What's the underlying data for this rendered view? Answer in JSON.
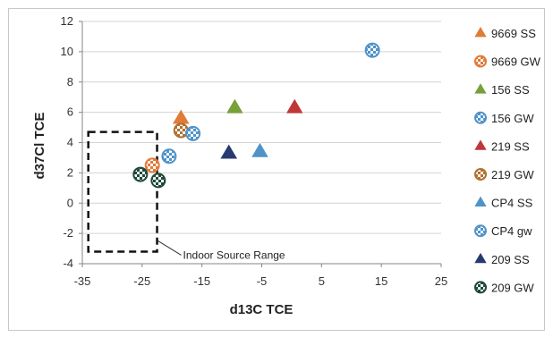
{
  "chart_data": {
    "type": "scatter",
    "xlabel": "d13C TCE",
    "ylabel": "d37Cl TCE",
    "xlim": [
      -35,
      25
    ],
    "ylim": [
      -4,
      12
    ],
    "xticks": [
      -35,
      -25,
      -15,
      -5,
      5,
      15,
      25
    ],
    "yticks": [
      -4,
      -2,
      0,
      2,
      4,
      6,
      8,
      10,
      12
    ],
    "grid": "horizontal",
    "legend": "right",
    "series": [
      {
        "name": "9669 SS",
        "marker": "triangle",
        "style": "solid",
        "color": "#e07b39",
        "points": [
          [
            -18.5,
            5.6
          ]
        ]
      },
      {
        "name": "9669 GW",
        "marker": "circle",
        "style": "checker",
        "color": "#e07b39",
        "points": [
          [
            -23.3,
            2.5
          ]
        ]
      },
      {
        "name": "156 SS",
        "marker": "triangle",
        "style": "solid",
        "color": "#76a03a",
        "points": [
          [
            -9.5,
            6.3
          ]
        ]
      },
      {
        "name": "156 GW",
        "marker": "circle",
        "style": "checker",
        "color": "#4f93c9",
        "points": [
          [
            13.5,
            10.1
          ]
        ]
      },
      {
        "name": "219 SS",
        "marker": "triangle",
        "style": "solid",
        "color": "#c0373a",
        "points": [
          [
            0.5,
            6.3
          ]
        ]
      },
      {
        "name": "219 GW",
        "marker": "circle",
        "style": "checker",
        "color": "#b07030",
        "points": [
          [
            -18.5,
            4.8
          ]
        ]
      },
      {
        "name": "CP4 SS",
        "marker": "triangle",
        "style": "solid",
        "color": "#4f93c9",
        "points": [
          [
            -5.3,
            3.4
          ]
        ]
      },
      {
        "name": "CP4 gw",
        "marker": "circle",
        "style": "checker",
        "color": "#4f93c9",
        "points": [
          [
            -16.5,
            4.6
          ],
          [
            -20.5,
            3.1
          ]
        ]
      },
      {
        "name": "209 SS",
        "marker": "triangle",
        "style": "solid",
        "color": "#283a73",
        "points": [
          [
            -10.5,
            3.3
          ]
        ]
      },
      {
        "name": "209 GW",
        "marker": "circle",
        "style": "checker",
        "color": "#1e4a3a",
        "points": [
          [
            -25.3,
            1.9
          ],
          [
            -22.3,
            1.5
          ]
        ]
      }
    ],
    "annotations": [
      {
        "text": "Indoor Source Range",
        "box_x": [
          -34,
          -22.5
        ],
        "box_y": [
          -3.2,
          4.7
        ]
      }
    ]
  }
}
